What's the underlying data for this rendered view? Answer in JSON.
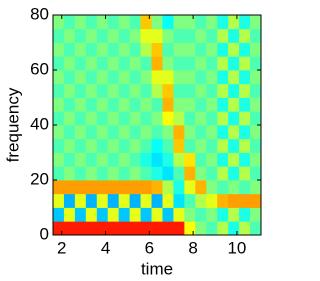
{
  "chart_data": {
    "type": "heatmap",
    "xlabel": "time",
    "ylabel": "frequency",
    "colorscale": "jet",
    "zlim": [
      0,
      1
    ],
    "xlim": [
      1.6,
      11.1
    ],
    "ylim": [
      0,
      80
    ],
    "xticks": [
      2,
      4,
      6,
      8,
      10
    ],
    "yticks": [
      0,
      20,
      40,
      60,
      80
    ],
    "x": [
      1.85,
      2.35,
      2.85,
      3.35,
      3.85,
      4.35,
      4.85,
      5.35,
      5.85,
      6.35,
      6.85,
      7.35,
      7.85,
      8.35,
      8.85,
      9.35,
      9.85,
      10.35,
      10.85
    ],
    "y": [
      2.5,
      7.5,
      12.5,
      17.5,
      22.5,
      27.5,
      32.5,
      37.5,
      42.5,
      47.5,
      52.5,
      57.5,
      62.5,
      67.5,
      72.5,
      77.5
    ],
    "z": [
      [
        0.85,
        0.85,
        0.85,
        0.85,
        0.85,
        0.85,
        0.85,
        0.85,
        0.85,
        0.85,
        0.85,
        0.85,
        0.62,
        0.5,
        0.45,
        0.55,
        0.4,
        0.55,
        0.45
      ],
      [
        0.32,
        0.6,
        0.32,
        0.6,
        0.32,
        0.6,
        0.32,
        0.6,
        0.32,
        0.6,
        0.32,
        0.6,
        0.5,
        0.45,
        0.5,
        0.4,
        0.55,
        0.4,
        0.5
      ],
      [
        0.6,
        0.3,
        0.6,
        0.3,
        0.6,
        0.3,
        0.6,
        0.3,
        0.6,
        0.3,
        0.6,
        0.35,
        0.45,
        0.55,
        0.6,
        0.7,
        0.72,
        0.72,
        0.72
      ],
      [
        0.72,
        0.72,
        0.72,
        0.72,
        0.72,
        0.72,
        0.72,
        0.72,
        0.72,
        0.7,
        0.55,
        0.4,
        0.6,
        0.7,
        0.5,
        0.45,
        0.5,
        0.45,
        0.5
      ],
      [
        0.45,
        0.5,
        0.45,
        0.5,
        0.45,
        0.5,
        0.45,
        0.5,
        0.45,
        0.4,
        0.35,
        0.45,
        0.7,
        0.5,
        0.45,
        0.55,
        0.4,
        0.55,
        0.45
      ],
      [
        0.5,
        0.45,
        0.5,
        0.45,
        0.5,
        0.45,
        0.5,
        0.45,
        0.4,
        0.35,
        0.4,
        0.55,
        0.65,
        0.45,
        0.5,
        0.4,
        0.55,
        0.4,
        0.5
      ],
      [
        0.45,
        0.5,
        0.45,
        0.5,
        0.45,
        0.5,
        0.45,
        0.5,
        0.45,
        0.38,
        0.45,
        0.68,
        0.45,
        0.5,
        0.45,
        0.55,
        0.4,
        0.55,
        0.45
      ],
      [
        0.5,
        0.45,
        0.5,
        0.45,
        0.5,
        0.45,
        0.5,
        0.45,
        0.5,
        0.45,
        0.5,
        0.7,
        0.5,
        0.45,
        0.5,
        0.4,
        0.55,
        0.4,
        0.5
      ],
      [
        0.45,
        0.5,
        0.45,
        0.5,
        0.45,
        0.5,
        0.45,
        0.5,
        0.45,
        0.5,
        0.62,
        0.55,
        0.45,
        0.5,
        0.45,
        0.55,
        0.4,
        0.55,
        0.45
      ],
      [
        0.5,
        0.45,
        0.5,
        0.45,
        0.5,
        0.45,
        0.5,
        0.45,
        0.5,
        0.45,
        0.7,
        0.5,
        0.5,
        0.45,
        0.5,
        0.4,
        0.55,
        0.4,
        0.5
      ],
      [
        0.45,
        0.5,
        0.45,
        0.5,
        0.45,
        0.5,
        0.45,
        0.5,
        0.45,
        0.55,
        0.68,
        0.45,
        0.45,
        0.5,
        0.45,
        0.55,
        0.4,
        0.55,
        0.45
      ],
      [
        0.5,
        0.45,
        0.5,
        0.45,
        0.5,
        0.45,
        0.5,
        0.45,
        0.5,
        0.6,
        0.6,
        0.5,
        0.5,
        0.45,
        0.5,
        0.4,
        0.55,
        0.4,
        0.5
      ],
      [
        0.45,
        0.5,
        0.45,
        0.5,
        0.45,
        0.5,
        0.45,
        0.5,
        0.45,
        0.7,
        0.5,
        0.45,
        0.45,
        0.5,
        0.45,
        0.55,
        0.4,
        0.55,
        0.45
      ],
      [
        0.5,
        0.45,
        0.5,
        0.45,
        0.5,
        0.45,
        0.5,
        0.45,
        0.55,
        0.68,
        0.45,
        0.5,
        0.5,
        0.45,
        0.5,
        0.4,
        0.55,
        0.4,
        0.5
      ],
      [
        0.45,
        0.5,
        0.45,
        0.5,
        0.45,
        0.5,
        0.45,
        0.5,
        0.6,
        0.6,
        0.5,
        0.45,
        0.45,
        0.5,
        0.45,
        0.55,
        0.4,
        0.55,
        0.45
      ],
      [
        0.5,
        0.45,
        0.5,
        0.45,
        0.5,
        0.45,
        0.5,
        0.45,
        0.68,
        0.5,
        0.38,
        0.5,
        0.5,
        0.45,
        0.5,
        0.4,
        0.55,
        0.4,
        0.5
      ]
    ]
  }
}
